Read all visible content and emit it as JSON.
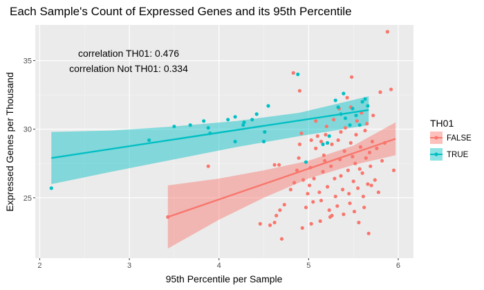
{
  "chart_data": {
    "type": "scatter",
    "title": "Each Sample's Count of Expressed Genes and its 95th Percentile",
    "xlabel": "95th Percentile per Sample",
    "ylabel": "Expressed Genes per Thousand",
    "xlim": [
      1.95,
      6.17
    ],
    "ylim": [
      20.6,
      37.6
    ],
    "xticks": [
      2,
      3,
      4,
      5,
      6
    ],
    "yticks": [
      25,
      30,
      35
    ],
    "grid": true,
    "legend": {
      "title": "TH01",
      "placement": "right",
      "entries": [
        {
          "label": "FALSE",
          "color": "#F8766D"
        },
        {
          "label": "TRUE",
          "color": "#00BFC4"
        }
      ]
    },
    "annotations": [
      "correlation TH01: 0.476",
      "correlation Not TH01: 0.334"
    ],
    "series": [
      {
        "name": "FALSE",
        "color": "#F8766D",
        "fit": {
          "x": [
            3.43,
            5.97
          ],
          "y": [
            23.6,
            29.3
          ]
        },
        "band": {
          "x": [
            3.43,
            4.0,
            4.5,
            5.0,
            5.5,
            5.97
          ],
          "lower": [
            21.3,
            23.4,
            25.0,
            26.4,
            27.4,
            28.1
          ],
          "upper": [
            25.9,
            26.4,
            27.0,
            27.7,
            28.8,
            30.5
          ]
        },
        "points": [
          [
            3.43,
            23.6
          ],
          [
            3.88,
            27.3
          ],
          [
            4.46,
            23.1
          ],
          [
            4.57,
            23.0
          ],
          [
            4.62,
            27.4
          ],
          [
            4.67,
            27.4
          ],
          [
            4.7,
            22.0
          ],
          [
            4.62,
            23.2
          ],
          [
            4.64,
            23.7
          ],
          [
            4.68,
            24.1
          ],
          [
            4.73,
            24.5
          ],
          [
            4.8,
            25.6
          ],
          [
            4.84,
            26.1
          ],
          [
            4.87,
            27.0
          ],
          [
            4.89,
            27.9
          ],
          [
            4.9,
            28.9
          ],
          [
            4.92,
            29.7
          ],
          [
            4.93,
            22.8
          ],
          [
            4.97,
            24.3
          ],
          [
            4.99,
            25.3
          ],
          [
            5.01,
            25.9
          ],
          [
            5.02,
            27.2
          ],
          [
            5.03,
            23.1
          ],
          [
            5.05,
            24.7
          ],
          [
            5.06,
            26.4
          ],
          [
            5.08,
            28.6
          ],
          [
            5.1,
            29.5
          ],
          [
            5.12,
            25.4
          ],
          [
            5.13,
            23.3
          ],
          [
            5.14,
            24.8
          ],
          [
            5.16,
            26.9
          ],
          [
            5.17,
            28.1
          ],
          [
            5.19,
            29.6
          ],
          [
            5.2,
            30.2
          ],
          [
            5.21,
            25.8
          ],
          [
            5.23,
            24.1
          ],
          [
            5.24,
            23.6
          ],
          [
            5.25,
            27.3
          ],
          [
            5.26,
            28.9
          ],
          [
            5.28,
            30.7
          ],
          [
            5.29,
            26.4
          ],
          [
            5.3,
            25.1
          ],
          [
            5.32,
            24.4
          ],
          [
            5.33,
            29.2
          ],
          [
            5.34,
            31.5
          ],
          [
            5.35,
            27.8
          ],
          [
            5.36,
            26.6
          ],
          [
            5.38,
            25.6
          ],
          [
            5.39,
            23.8
          ],
          [
            5.4,
            28.4
          ],
          [
            5.41,
            30.1
          ],
          [
            5.43,
            32.3
          ],
          [
            5.44,
            27.0
          ],
          [
            5.45,
            25.3
          ],
          [
            5.46,
            24.6
          ],
          [
            5.47,
            29.0
          ],
          [
            5.48,
            33.8
          ],
          [
            5.49,
            28.0
          ],
          [
            5.5,
            26.2
          ],
          [
            5.51,
            24.0
          ],
          [
            5.52,
            27.5
          ],
          [
            5.53,
            29.6
          ],
          [
            5.54,
            30.6
          ],
          [
            5.55,
            25.7
          ],
          [
            5.56,
            23.2
          ],
          [
            5.57,
            27.1
          ],
          [
            5.58,
            28.7
          ],
          [
            5.59,
            31.2
          ],
          [
            5.6,
            26.8
          ],
          [
            5.61,
            25.1
          ],
          [
            5.62,
            24.3
          ],
          [
            5.63,
            29.9
          ],
          [
            5.64,
            27.9
          ],
          [
            5.65,
            30.4
          ],
          [
            5.66,
            26.0
          ],
          [
            5.67,
            22.4
          ],
          [
            5.68,
            28.3
          ],
          [
            5.69,
            27.3
          ],
          [
            5.7,
            25.9
          ],
          [
            5.71,
            29.1
          ],
          [
            5.72,
            31.0
          ],
          [
            5.74,
            26.3
          ],
          [
            5.76,
            28.6
          ],
          [
            5.78,
            25.4
          ],
          [
            5.8,
            32.7
          ],
          [
            5.82,
            27.7
          ],
          [
            5.85,
            29.0
          ],
          [
            5.88,
            37.1
          ],
          [
            5.92,
            32.9
          ],
          [
            5.95,
            27.0
          ],
          [
            4.83,
            34.1
          ],
          [
            4.9,
            32.8
          ],
          [
            5.08,
            30.6
          ],
          [
            5.14,
            29.1
          ],
          [
            5.36,
            29.8
          ],
          [
            5.18,
            27.7
          ],
          [
            5.47,
            31.6
          ],
          [
            5.03,
            29.2
          ],
          [
            4.94,
            26.3
          ],
          [
            5.26,
            23.7
          ]
        ]
      },
      {
        "name": "TRUE",
        "color": "#00BFC4",
        "fit": {
          "x": [
            2.13,
            5.67
          ],
          "y": [
            27.9,
            31.4
          ]
        },
        "band": {
          "x": [
            2.13,
            2.8,
            3.5,
            4.2,
            4.9,
            5.67
          ],
          "lower": [
            26.0,
            26.9,
            27.8,
            28.7,
            29.5,
            30.3
          ],
          "upper": [
            29.8,
            29.9,
            30.2,
            30.6,
            31.2,
            32.4
          ]
        },
        "points": [
          [
            2.13,
            25.7
          ],
          [
            3.22,
            29.2
          ],
          [
            3.5,
            30.2
          ],
          [
            3.68,
            30.3
          ],
          [
            3.83,
            30.6
          ],
          [
            3.88,
            30.1
          ],
          [
            3.9,
            29.7
          ],
          [
            4.1,
            30.7
          ],
          [
            4.18,
            30.9
          ],
          [
            4.18,
            29.1
          ],
          [
            4.27,
            30.3
          ],
          [
            4.28,
            30.5
          ],
          [
            4.37,
            30.7
          ],
          [
            4.42,
            31.1
          ],
          [
            4.51,
            29.8
          ],
          [
            4.5,
            29.1
          ],
          [
            4.55,
            31.7
          ],
          [
            4.88,
            34.0
          ],
          [
            4.97,
            27.6
          ],
          [
            5.16,
            28.9
          ],
          [
            5.21,
            29.0
          ],
          [
            5.3,
            32.1
          ],
          [
            5.33,
            31.6
          ],
          [
            5.36,
            31.1
          ],
          [
            5.41,
            30.8
          ],
          [
            5.46,
            30.3
          ],
          [
            5.49,
            31.5
          ],
          [
            5.53,
            31.0
          ],
          [
            5.57,
            30.3
          ],
          [
            5.6,
            32.0
          ],
          [
            5.63,
            32.2
          ],
          [
            5.66,
            31.7
          ],
          [
            5.39,
            32.6
          ],
          [
            5.23,
            29.5
          ]
        ]
      }
    ]
  }
}
